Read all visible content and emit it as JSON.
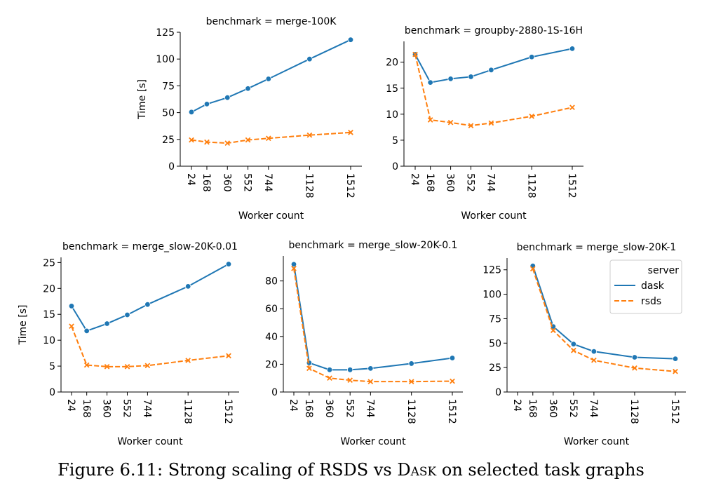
{
  "caption": {
    "prefix": "Figure 6.11: Strong scaling of RSDS vs ",
    "dask_word": "Dask",
    "suffix": " on selected task graphs"
  },
  "legend": {
    "title": "server",
    "entries": [
      {
        "name": "dask",
        "color": "#1f77b4",
        "style": "solid"
      },
      {
        "name": "rsds",
        "color": "#ff7f0e",
        "style": "dashed"
      }
    ],
    "placement": "upper-right of last panel"
  },
  "chart_data": [
    {
      "type": "line",
      "title": "benchmark = merge-100K",
      "xlabel": "Worker count",
      "ylabel": "Time [s]",
      "categories": [
        "24",
        "168",
        "360",
        "552",
        "744",
        "1128",
        "1512"
      ],
      "x": [
        24,
        168,
        360,
        552,
        744,
        1128,
        1512
      ],
      "ylim": [
        0,
        125
      ],
      "yticks": [
        0,
        25,
        50,
        75,
        100,
        125
      ],
      "grid": false,
      "series": [
        {
          "name": "dask",
          "values": [
            50.5,
            58,
            64,
            72.5,
            81.5,
            100,
            118
          ]
        },
        {
          "name": "rsds",
          "values": [
            24.5,
            22.5,
            21.5,
            24.5,
            26,
            29,
            31.5
          ]
        }
      ]
    },
    {
      "type": "line",
      "title": "benchmark = groupby-2880-1S-16H",
      "xlabel": "Worker count",
      "ylabel": "",
      "categories": [
        "24",
        "168",
        "360",
        "552",
        "744",
        "1128",
        "1512"
      ],
      "x": [
        24,
        168,
        360,
        552,
        744,
        1128,
        1512
      ],
      "ylim": [
        0,
        24
      ],
      "yticks": [
        0,
        5,
        10,
        15,
        20
      ],
      "grid": false,
      "series": [
        {
          "name": "dask",
          "values": [
            21.5,
            16.1,
            16.8,
            17.2,
            18.5,
            21,
            22.6
          ]
        },
        {
          "name": "rsds",
          "values": [
            21.5,
            8.9,
            8.4,
            7.8,
            8.3,
            9.6,
            11.3
          ]
        }
      ]
    },
    {
      "type": "line",
      "title": "benchmark = merge_slow-20K-0.01",
      "xlabel": "Worker count",
      "ylabel": "Time [s]",
      "categories": [
        "24",
        "168",
        "360",
        "552",
        "744",
        "1128",
        "1512"
      ],
      "x": [
        24,
        168,
        360,
        552,
        744,
        1128,
        1512
      ],
      "ylim": [
        0,
        26
      ],
      "yticks": [
        0,
        5,
        10,
        15,
        20,
        25
      ],
      "grid": false,
      "series": [
        {
          "name": "dask",
          "values": [
            16.6,
            11.8,
            13.2,
            14.9,
            16.9,
            20.4,
            24.7
          ]
        },
        {
          "name": "rsds",
          "values": [
            12.7,
            5.2,
            4.9,
            4.9,
            5.1,
            6.1,
            7.0
          ]
        }
      ]
    },
    {
      "type": "line",
      "title": "benchmark = merge_slow-20K-0.1",
      "xlabel": "Worker count",
      "ylabel": "",
      "categories": [
        "24",
        "168",
        "360",
        "552",
        "744",
        "1128",
        "1512"
      ],
      "x": [
        24,
        168,
        360,
        552,
        744,
        1128,
        1512
      ],
      "ylim": [
        0,
        98
      ],
      "yticks": [
        0,
        20,
        40,
        60,
        80
      ],
      "grid": false,
      "series": [
        {
          "name": "dask",
          "values": [
            92,
            21,
            16,
            16,
            17,
            20.5,
            24.5
          ]
        },
        {
          "name": "rsds",
          "values": [
            89,
            17,
            10,
            8.5,
            7.5,
            7.5,
            7.8
          ]
        }
      ]
    },
    {
      "type": "line",
      "title": "benchmark = merge_slow-20K-1",
      "xlabel": "Worker count",
      "ylabel": "",
      "categories": [
        "24",
        "168",
        "360",
        "552",
        "744",
        "1128",
        "1512"
      ],
      "x": [
        24,
        168,
        360,
        552,
        744,
        1128,
        1512
      ],
      "ylim": [
        0,
        137
      ],
      "yticks": [
        0,
        25,
        50,
        75,
        100,
        125
      ],
      "grid": false,
      "series": [
        {
          "name": "dask",
          "x": [
            168,
            360,
            552,
            744,
            1128,
            1512
          ],
          "values": [
            129,
            67,
            49,
            41.5,
            35.5,
            34
          ]
        },
        {
          "name": "rsds",
          "x": [
            168,
            360,
            552,
            744,
            1128,
            1512
          ],
          "values": [
            126,
            63,
            42.5,
            32.5,
            24.5,
            21
          ]
        }
      ]
    }
  ]
}
